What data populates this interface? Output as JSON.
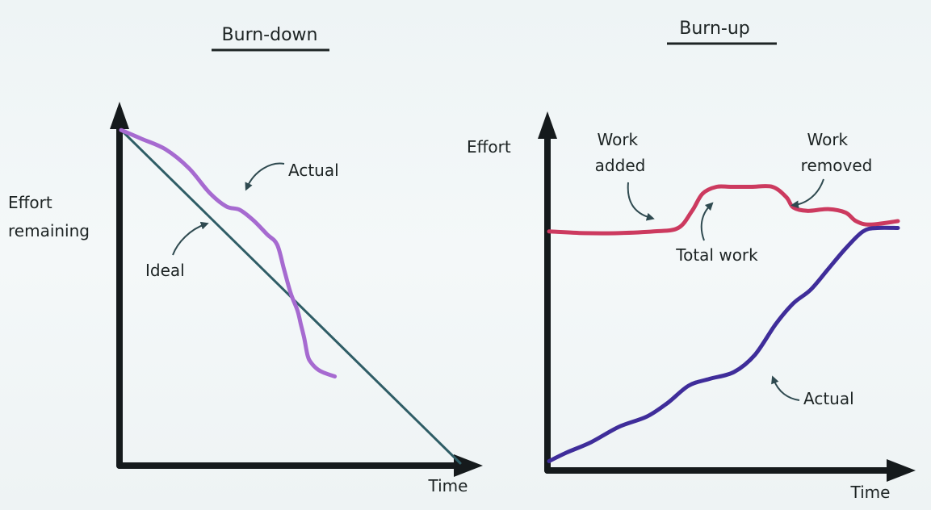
{
  "colors": {
    "axis": "#151a1c",
    "ideal": "#2f5d66",
    "burn_actual": "#a66ad0",
    "total_work": "#cc3a5f",
    "burnup_actual": "#3f2d9a",
    "ink": "#1d2424"
  },
  "chart_data": [
    {
      "type": "line",
      "title": "Burn-down",
      "xlabel": "Time",
      "ylabel": "Effort remaining",
      "grid": false,
      "xlim": [
        0,
        10
      ],
      "ylim": [
        0,
        10
      ],
      "series": [
        {
          "name": "Ideal",
          "x": [
            0,
            10
          ],
          "y": [
            9.6,
            0
          ]
        },
        {
          "name": "Actual",
          "x": [
            0,
            0.6,
            1.3,
            2.0,
            2.6,
            3.1,
            3.5,
            3.9,
            4.3,
            4.6,
            4.8,
            5.0,
            5.2,
            5.3,
            5.4,
            5.5,
            5.6,
            5.8,
            6.0,
            6.3
          ],
          "y": [
            9.6,
            9.35,
            9.05,
            8.5,
            7.8,
            7.4,
            7.3,
            7.0,
            6.6,
            6.3,
            5.6,
            4.9,
            4.4,
            4.0,
            3.6,
            3.1,
            2.9,
            2.7,
            2.6,
            2.5
          ]
        }
      ],
      "annotations": [
        {
          "text": "Actual",
          "x": 5.1,
          "y": 8.4
        },
        {
          "text": "Ideal",
          "x": 0.8,
          "y": 5.7
        }
      ]
    },
    {
      "type": "line",
      "title": "Burn-up",
      "xlabel": "Time",
      "ylabel": "Effort",
      "grid": false,
      "xlim": [
        0,
        10
      ],
      "ylim": [
        0,
        10
      ],
      "series": [
        {
          "name": "Total work",
          "x": [
            0,
            1.0,
            2.0,
            3.0,
            3.7,
            4.1,
            4.4,
            4.8,
            5.2,
            5.8,
            6.4,
            6.8,
            7.0,
            7.4,
            8.0,
            8.5,
            8.8,
            9.2,
            10.0
          ],
          "y": [
            6.9,
            6.85,
            6.85,
            6.9,
            7.0,
            7.5,
            8.0,
            8.2,
            8.2,
            8.2,
            8.2,
            7.9,
            7.6,
            7.5,
            7.55,
            7.45,
            7.2,
            7.1,
            7.2
          ]
        },
        {
          "name": "Actual",
          "x": [
            0,
            0.5,
            1.2,
            2.0,
            2.8,
            3.4,
            4.0,
            4.6,
            5.3,
            5.9,
            6.5,
            7.0,
            7.5,
            8.0,
            8.5,
            9.0,
            9.4,
            10.0
          ],
          "y": [
            0.2,
            0.45,
            0.75,
            1.2,
            1.5,
            1.9,
            2.4,
            2.6,
            2.8,
            3.3,
            4.2,
            4.8,
            5.2,
            5.8,
            6.4,
            6.9,
            7.0,
            7.0
          ]
        }
      ],
      "annotations": [
        {
          "text": "Work added",
          "x": 1.7,
          "y": 9.2
        },
        {
          "text": "Work removed",
          "x": 7.5,
          "y": 9.2
        },
        {
          "text": "Total work",
          "x": 4.0,
          "y": 6.7
        },
        {
          "text": "Actual",
          "x": 7.3,
          "y": 2.1
        }
      ]
    }
  ]
}
